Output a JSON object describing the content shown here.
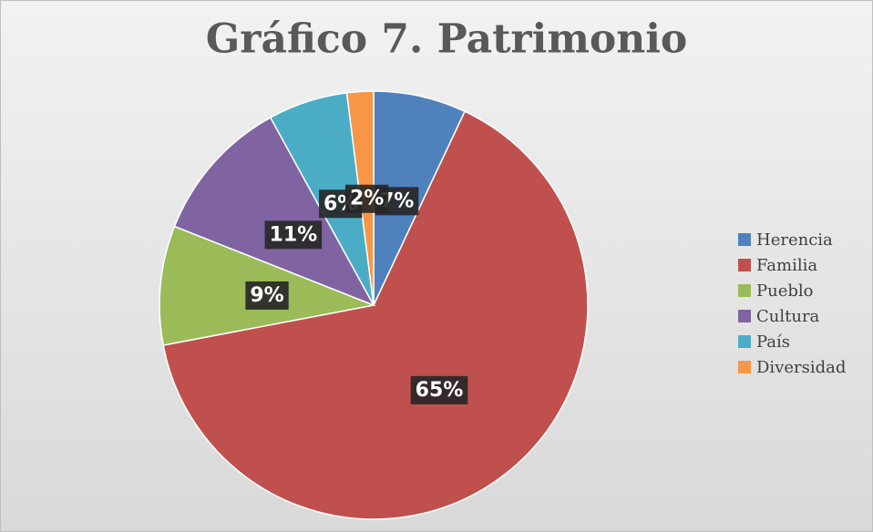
{
  "chart_data": {
    "type": "pie",
    "title": "Gráfico 7. Patrimonio",
    "categories": [
      "Herencia",
      "Familia",
      "Pueblo",
      "Cultura",
      "País",
      "Diversidad"
    ],
    "values": [
      7,
      65,
      9,
      11,
      6,
      2
    ],
    "value_labels": [
      "7%",
      "65%",
      "9%",
      "11%",
      "6%",
      "2%"
    ],
    "colors": [
      "#4f81bd",
      "#c0504d",
      "#9bbb59",
      "#8064a2",
      "#4bacc6",
      "#f79646"
    ],
    "legend": "right"
  }
}
